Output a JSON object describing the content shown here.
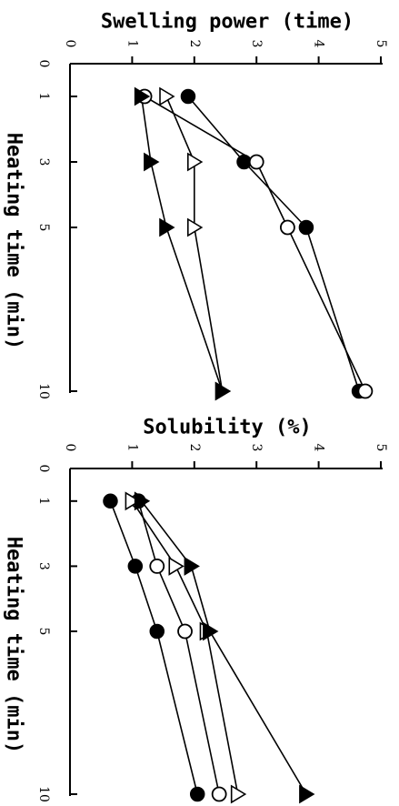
{
  "chart_data": [
    {
      "type": "line",
      "title": "",
      "xlabel": "Heating time (min)",
      "ylabel": "Swelling power (time)",
      "x": [
        1,
        3,
        5,
        10
      ],
      "xlim": [
        0,
        10
      ],
      "ylim": [
        0,
        5
      ],
      "x_ticks": [
        "0",
        "1",
        "3",
        "5",
        "10"
      ],
      "y_ticks": [
        "0",
        "1",
        "2",
        "3",
        "4",
        "5"
      ],
      "series": [
        {
          "marker": "filled-circle",
          "values": [
            1.9,
            2.8,
            3.8,
            4.65
          ]
        },
        {
          "marker": "open-circle",
          "values": [
            1.2,
            3.0,
            3.5,
            4.75
          ]
        },
        {
          "marker": "open-triangle",
          "values": [
            1.55,
            2.0,
            2.0,
            2.45
          ]
        },
        {
          "marker": "filled-triangle",
          "values": [
            1.15,
            1.3,
            1.55,
            2.45
          ]
        }
      ]
    },
    {
      "type": "line",
      "title": "",
      "xlabel": "Heating time (min)",
      "ylabel": "Solubility (%)",
      "x": [
        1,
        3,
        5,
        10
      ],
      "xlim": [
        0,
        10
      ],
      "ylim": [
        0,
        5
      ],
      "x_ticks": [
        "0",
        "1",
        "3",
        "5",
        "10"
      ],
      "y_ticks": [
        "0",
        "1",
        "2",
        "3",
        "4",
        "5"
      ],
      "series": [
        {
          "marker": "filled-circle",
          "values": [
            0.65,
            1.05,
            1.4,
            2.05
          ]
        },
        {
          "marker": "open-circle",
          "values": [
            1.1,
            1.4,
            1.85,
            2.4
          ]
        },
        {
          "marker": "open-triangle",
          "values": [
            1.0,
            1.7,
            2.2,
            2.7
          ]
        },
        {
          "marker": "filled-triangle",
          "values": [
            1.15,
            1.95,
            2.25,
            3.8
          ]
        }
      ]
    }
  ]
}
